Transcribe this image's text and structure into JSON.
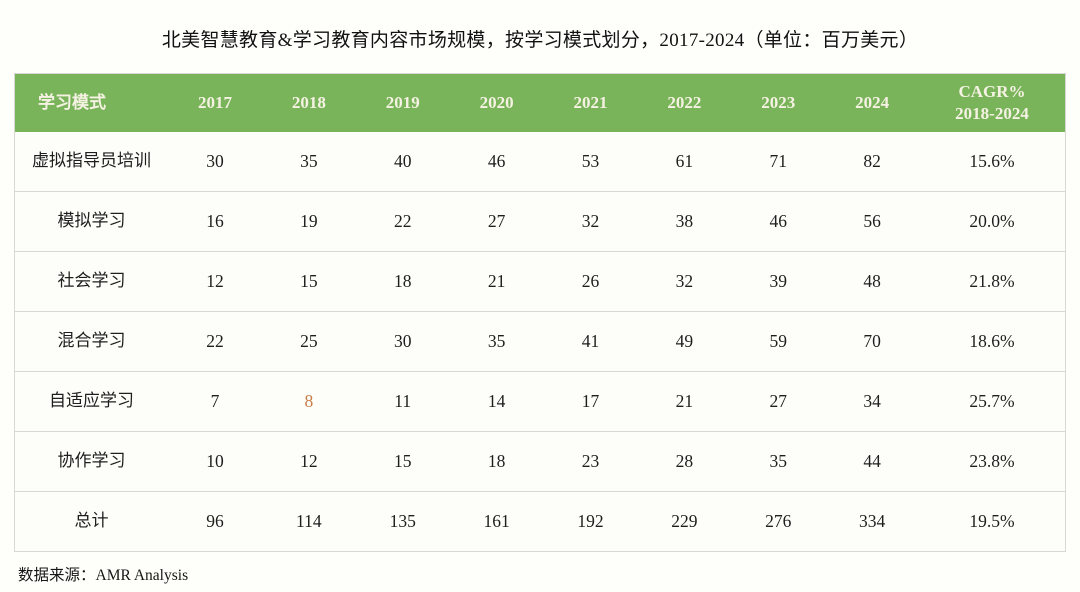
{
  "title": "北美智慧教育&学习教育内容市场规模，按学习模式划分，2017-2024（单位：百万美元）",
  "source": {
    "label": "数据来源：",
    "value": "AMR Analysis"
  },
  "colors": {
    "header_bg": "#7ab45a",
    "header_text": "#f5f2e3",
    "border": "#d8d7d2",
    "highlight": "#c97c46"
  },
  "chart_data": {
    "type": "table",
    "columns": [
      "学习模式",
      "2017",
      "2018",
      "2019",
      "2020",
      "2021",
      "2022",
      "2023",
      "2024",
      "CAGR%\n2018-2024"
    ],
    "rows": [
      {
        "label": "虚拟指导员培训",
        "values": [
          30,
          35,
          40,
          46,
          53,
          61,
          71,
          82
        ],
        "cagr": "15.6%"
      },
      {
        "label": "模拟学习",
        "values": [
          16,
          19,
          22,
          27,
          32,
          38,
          46,
          56
        ],
        "cagr": "20.0%"
      },
      {
        "label": "社会学习",
        "values": [
          12,
          15,
          18,
          21,
          26,
          32,
          39,
          48
        ],
        "cagr": "21.8%"
      },
      {
        "label": "混合学习",
        "values": [
          22,
          25,
          30,
          35,
          41,
          49,
          59,
          70
        ],
        "cagr": "18.6%"
      },
      {
        "label": "自适应学习",
        "values": [
          7,
          8,
          11,
          14,
          17,
          21,
          27,
          34
        ],
        "cagr": "25.7%"
      },
      {
        "label": "协作学习",
        "values": [
          10,
          12,
          15,
          18,
          23,
          28,
          35,
          44
        ],
        "cagr": "23.8%"
      },
      {
        "label": "总计",
        "values": [
          96,
          114,
          135,
          161,
          192,
          229,
          276,
          334
        ],
        "cagr": "19.5%"
      }
    ],
    "highlight_cell": {
      "row_index": 4,
      "value_index": 1
    },
    "layout": {
      "grid": "horizontal-only",
      "header_position": "top"
    }
  }
}
